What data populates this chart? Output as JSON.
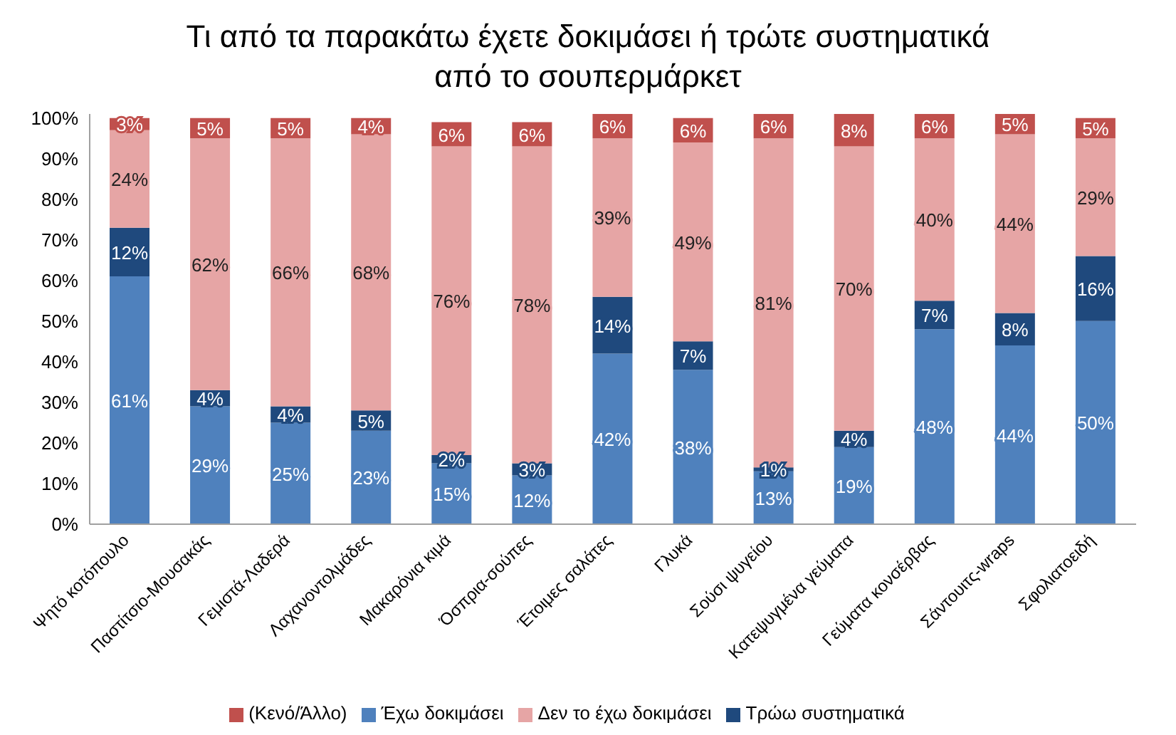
{
  "chart_data": {
    "type": "bar",
    "stacked": true,
    "title": "Τι από τα παρακάτω έχετε δοκιμάσει ή τρώτε συστηματικά από το σουπερμάρκετ",
    "categories": [
      "Ψητό κοτόπουλο",
      "Παστίτσιο-Μουσακάς",
      "Γεμιστά-Λαδερά",
      "Λαχανοντολμάδες",
      "Μακαρόνια κιμά",
      "Όσπρια-σούπες",
      "Έτοιμες σαλάτες",
      "Γλυκά",
      "Σούσι ψυγείου",
      "Κατεψυγμένα γεύματα",
      "Γεύματα κονσέρβας",
      "Σάντουιτς-wraps",
      "Σφολιατοειδή"
    ],
    "series": [
      {
        "name": "Έχω δοκιμάσει",
        "color": "#4f81bd",
        "values": [
          61,
          29,
          25,
          23,
          15,
          12,
          42,
          38,
          13,
          19,
          48,
          44,
          50
        ],
        "value_labels": [
          "61%",
          "29%",
          "25%",
          "23%",
          "15%",
          "12%",
          "42%",
          "38%",
          "13%",
          "19%",
          "48%",
          "44%",
          "50%"
        ]
      },
      {
        "name": "Τρώω συστηματικά",
        "color": "#1f497d",
        "values": [
          12,
          4,
          4,
          5,
          2,
          3,
          14,
          7,
          1,
          4,
          7,
          8,
          16
        ],
        "value_labels": [
          "12%",
          "4%",
          "4%",
          "5%",
          "2%",
          "3%",
          "14%",
          "7%",
          "1%",
          "4%",
          "7%",
          "8%",
          "16%"
        ]
      },
      {
        "name": "Δεν το έχω δοκιμάσει",
        "color": "#e6a5a5",
        "values": [
          24,
          62,
          66,
          68,
          76,
          78,
          39,
          49,
          81,
          70,
          40,
          44,
          29
        ],
        "value_labels": [
          "24%",
          "62%",
          "66%",
          "68%",
          "76%",
          "78%",
          "39%",
          "49%",
          "81%",
          "70%",
          "40%",
          "44%",
          "29%"
        ]
      },
      {
        "name": "(Κενό/Άλλο)",
        "color": "#c0504d",
        "values": [
          3,
          5,
          5,
          4,
          6,
          6,
          6,
          6,
          6,
          8,
          6,
          5,
          5
        ],
        "value_labels": [
          "3%",
          "5%",
          "5%",
          "4%",
          "6%",
          "6%",
          "6%",
          "6%",
          "6%",
          "8%",
          "6%",
          "5%",
          "5%"
        ]
      }
    ],
    "ylim": [
      0,
      101
    ],
    "yticks": [
      {
        "value": 0,
        "label": "0%"
      },
      {
        "value": 10,
        "label": "10%"
      },
      {
        "value": 20,
        "label": "20%"
      },
      {
        "value": 30,
        "label": "30%"
      },
      {
        "value": 40,
        "label": "40%"
      },
      {
        "value": 50,
        "label": "50%"
      },
      {
        "value": 60,
        "label": "60%"
      },
      {
        "value": 70,
        "label": "70%"
      },
      {
        "value": 80,
        "label": "80%"
      },
      {
        "value": 90,
        "label": "90%"
      },
      {
        "value": 100,
        "label": "100%"
      }
    ],
    "grid": false,
    "legend": "bottom"
  }
}
